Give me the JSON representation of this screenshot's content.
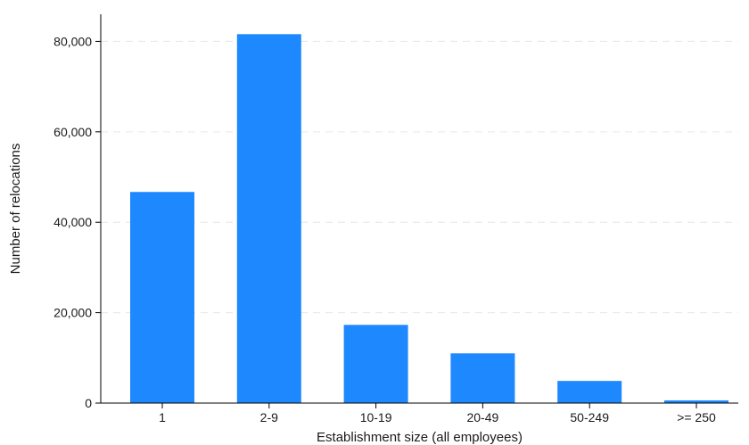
{
  "chart_data": {
    "type": "bar",
    "title": "",
    "xlabel": "Establishment size (all employees)",
    "ylabel": "Number of relocations",
    "categories": [
      "1",
      "2-9",
      "10-19",
      "20-49",
      "50-249",
      ">= 250"
    ],
    "values": [
      46700,
      81600,
      17300,
      11000,
      4900,
      600
    ],
    "ylim": [
      0,
      86000
    ],
    "yticks": [
      0,
      20000,
      40000,
      60000,
      80000
    ],
    "ytick_labels": [
      "0",
      "20,000",
      "40,000",
      "60,000",
      "80,000"
    ],
    "grid": true,
    "legend": "none",
    "bar_color": "#1e88ff"
  }
}
